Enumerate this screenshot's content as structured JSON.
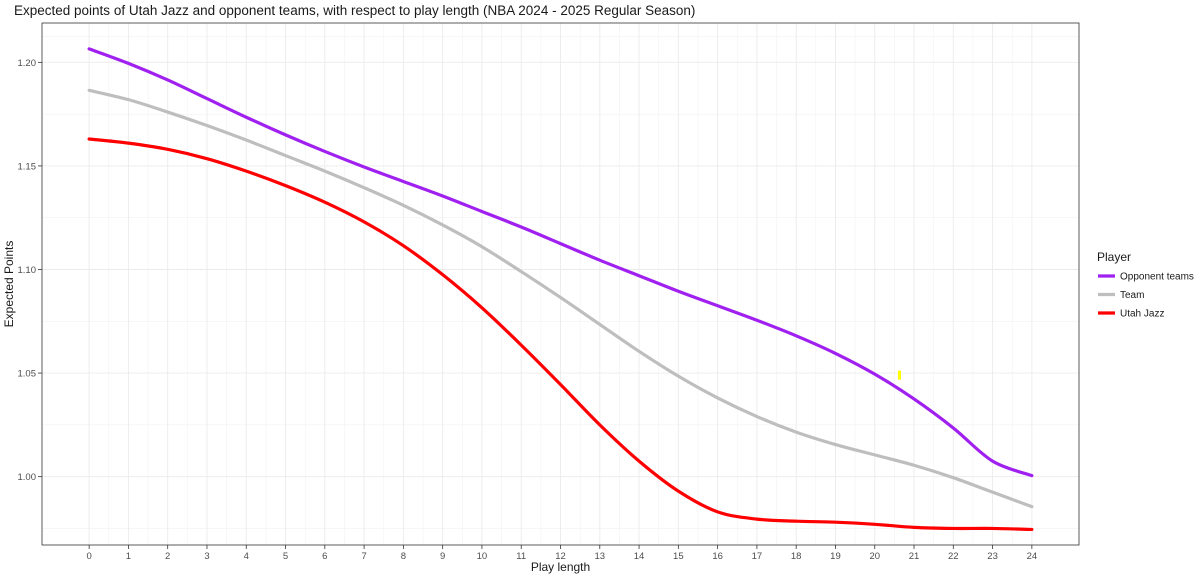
{
  "chart_data": {
    "type": "line",
    "title": "Expected points of Utah Jazz and opponent teams, with respect to play length (NBA 2024 - 2025 Regular Season)",
    "xlabel": "Play length",
    "ylabel": "Expected Points",
    "xlim": [
      -1.2,
      25.2
    ],
    "ylim": [
      0.967,
      1.219
    ],
    "x_ticks": [
      0,
      1,
      2,
      3,
      4,
      5,
      6,
      7,
      8,
      9,
      10,
      11,
      12,
      13,
      14,
      15,
      16,
      17,
      18,
      19,
      20,
      21,
      22,
      23,
      24
    ],
    "y_ticks": [
      1.0,
      1.05,
      1.1,
      1.15,
      1.2
    ],
    "y_tick_labels": [
      "1.00",
      "1.05",
      "1.10",
      "1.15",
      "1.20"
    ],
    "grid": true,
    "legend": {
      "title": "Player",
      "position": "right"
    },
    "x": [
      0,
      1,
      2,
      3,
      4,
      5,
      6,
      7,
      8,
      9,
      10,
      11,
      12,
      13,
      14,
      15,
      16,
      17,
      18,
      19,
      20,
      21,
      22,
      23,
      24
    ],
    "series": [
      {
        "name": "Opponent teams",
        "color": "#a020f0",
        "values": [
          1.2065,
          1.1995,
          1.1915,
          1.1825,
          1.1735,
          1.165,
          1.157,
          1.1495,
          1.1425,
          1.1355,
          1.128,
          1.1205,
          1.1125,
          1.1045,
          1.097,
          1.0895,
          1.0825,
          1.0755,
          1.068,
          1.0595,
          1.0495,
          1.0375,
          1.0235,
          1.0075,
          1.0005
        ]
      },
      {
        "name": "Team",
        "color": "#bebebe",
        "values": [
          1.1865,
          1.182,
          1.176,
          1.1695,
          1.1625,
          1.155,
          1.1475,
          1.1395,
          1.131,
          1.1215,
          1.111,
          1.099,
          1.0865,
          1.0735,
          1.0605,
          1.0485,
          1.038,
          1.029,
          1.0215,
          1.0155,
          1.0105,
          1.0055,
          0.9995,
          0.9925,
          0.9855
        ]
      },
      {
        "name": "Utah Jazz",
        "color": "#ff0000",
        "values": [
          1.163,
          1.161,
          1.158,
          1.1535,
          1.1475,
          1.1405,
          1.1325,
          1.123,
          1.1115,
          1.0975,
          1.0815,
          1.0635,
          1.0445,
          1.025,
          1.0075,
          0.993,
          0.983,
          0.9795,
          0.9785,
          0.978,
          0.977,
          0.9755,
          0.975,
          0.975,
          0.9745
        ]
      }
    ],
    "highlight_marker": {
      "x": 20.63,
      "y": 1.049,
      "color": "#ffff00"
    }
  }
}
